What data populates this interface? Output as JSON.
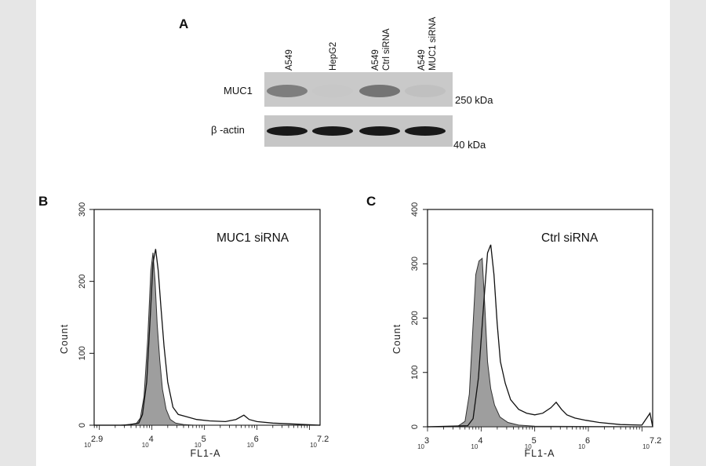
{
  "panel_a": {
    "label": "A",
    "lanes": [
      {
        "line1": "A549",
        "line2": ""
      },
      {
        "line1": "HepG2",
        "line2": ""
      },
      {
        "line1": "A549",
        "line2": "Ctrl siRNA"
      },
      {
        "line1": "A549",
        "line2": "MUC1 siRNA"
      }
    ],
    "rows": [
      {
        "label": "MUC1",
        "marker": "250 kDa",
        "band_intensity": [
          0.55,
          0.03,
          0.6,
          0.1
        ]
      },
      {
        "label": "β -actin",
        "marker": "40 kDa",
        "band_intensity": [
          0.95,
          0.95,
          0.95,
          0.95
        ]
      }
    ]
  },
  "chart_data": [
    {
      "type": "line",
      "panel": "B",
      "annotation": "MUC1 siRNA",
      "xlabel": "FL1-A",
      "ylabel": "Count",
      "x_scale": "log",
      "xlim": [
        2.9,
        7.2
      ],
      "ylim": [
        0,
        300
      ],
      "x_ticks": [
        {
          "base": "10",
          "exp": "2.9",
          "value": 2.9
        },
        {
          "base": "10",
          "exp": "4",
          "value": 4
        },
        {
          "base": "10",
          "exp": "5",
          "value": 5
        },
        {
          "base": "10",
          "exp": "6",
          "value": 6
        },
        {
          "base": "10",
          "exp": "7.2",
          "value": 7.2
        }
      ],
      "y_ticks": [
        "0",
        "100",
        "200",
        "300"
      ],
      "series": [
        {
          "style": "filled-gray",
          "x": [
            2.9,
            3.4,
            3.7,
            3.78,
            3.85,
            3.92,
            3.98,
            4.02,
            4.06,
            4.1,
            4.15,
            4.2,
            4.27,
            4.35,
            4.45,
            4.6,
            4.8,
            5.2,
            7.2
          ],
          "y": [
            0,
            0,
            2,
            10,
            40,
            120,
            215,
            240,
            200,
            140,
            90,
            50,
            22,
            8,
            3,
            1,
            0,
            0,
            0
          ]
        },
        {
          "style": "outline",
          "x": [
            2.9,
            3.5,
            3.75,
            3.82,
            3.9,
            3.96,
            4.02,
            4.07,
            4.12,
            4.17,
            4.23,
            4.3,
            4.4,
            4.5,
            4.65,
            4.85,
            5.1,
            5.4,
            5.6,
            5.75,
            5.85,
            6.0,
            6.3,
            6.6,
            7.2
          ],
          "y": [
            0,
            0,
            3,
            15,
            60,
            140,
            225,
            245,
            215,
            165,
            110,
            60,
            25,
            15,
            12,
            8,
            6,
            5,
            8,
            14,
            8,
            5,
            3,
            2,
            0
          ]
        }
      ]
    },
    {
      "type": "line",
      "panel": "C",
      "annotation": "Ctrl siRNA",
      "xlabel": "FL1-A",
      "ylabel": "Count",
      "x_scale": "log",
      "xlim": [
        3,
        7.2
      ],
      "ylim": [
        0,
        400
      ],
      "x_ticks": [
        {
          "base": "10",
          "exp": "3",
          "value": 3
        },
        {
          "base": "10",
          "exp": "4",
          "value": 4
        },
        {
          "base": "10",
          "exp": "5",
          "value": 5
        },
        {
          "base": "10",
          "exp": "6",
          "value": 6
        },
        {
          "base": "10",
          "exp": "7.2",
          "value": 7.2
        }
      ],
      "y_ticks": [
        "0",
        "100",
        "200",
        "300",
        "400"
      ],
      "series": [
        {
          "style": "filled-gray",
          "x": [
            3,
            3.55,
            3.7,
            3.78,
            3.84,
            3.9,
            3.96,
            4.02,
            4.07,
            4.12,
            4.18,
            4.25,
            4.35,
            4.5,
            4.7,
            5.0,
            7.2
          ],
          "y": [
            0,
            0,
            10,
            60,
            170,
            280,
            305,
            310,
            220,
            120,
            70,
            40,
            18,
            8,
            3,
            1,
            0
          ]
        },
        {
          "style": "outline",
          "x": [
            3,
            3.75,
            3.85,
            3.95,
            4.05,
            4.12,
            4.18,
            4.24,
            4.3,
            4.36,
            4.45,
            4.55,
            4.7,
            4.85,
            5.0,
            5.15,
            5.3,
            5.4,
            5.5,
            5.6,
            5.75,
            5.95,
            6.2,
            6.6,
            7.0,
            7.15,
            7.2
          ],
          "y": [
            0,
            2,
            15,
            90,
            230,
            320,
            335,
            280,
            190,
            120,
            80,
            50,
            32,
            25,
            22,
            25,
            35,
            45,
            32,
            22,
            16,
            12,
            8,
            4,
            3,
            25,
            0
          ]
        }
      ]
    }
  ]
}
